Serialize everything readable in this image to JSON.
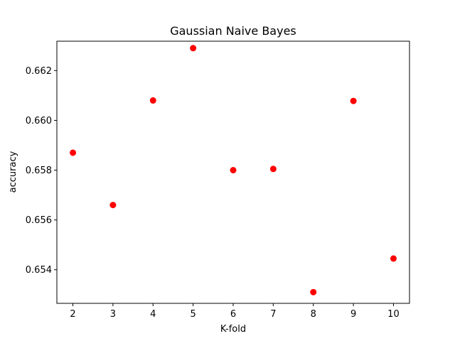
{
  "chart_data": {
    "type": "scatter",
    "title": "Gaussian Naive Bayes",
    "xlabel": "K-fold",
    "ylabel": "accuracy",
    "x": [
      2,
      3,
      4,
      5,
      6,
      7,
      8,
      9,
      10
    ],
    "y": [
      0.6587,
      0.6566,
      0.6608,
      0.6629,
      0.658,
      0.65805,
      0.6531,
      0.66078,
      0.65445
    ],
    "xlim": [
      1.6,
      10.4
    ],
    "ylim": [
      0.65265,
      0.66318
    ],
    "xticks": [
      2,
      3,
      4,
      5,
      6,
      7,
      8,
      9,
      10
    ],
    "xtick_labels": [
      "2",
      "3",
      "4",
      "5",
      "6",
      "7",
      "8",
      "9",
      "10"
    ],
    "yticks": [
      0.654,
      0.656,
      0.658,
      0.66,
      0.662
    ],
    "ytick_labels": [
      "0.654",
      "0.656",
      "0.658",
      "0.660",
      "0.662"
    ],
    "grid": false,
    "legend": "none",
    "marker_color": "#ff0000"
  }
}
